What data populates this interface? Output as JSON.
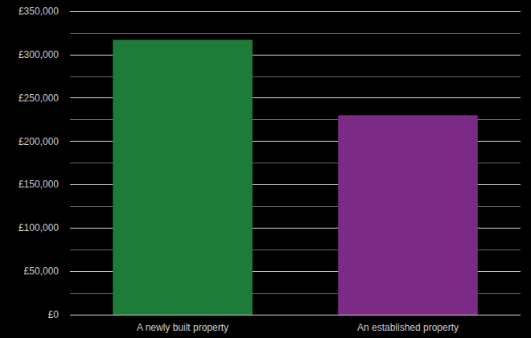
{
  "chart_data": {
    "type": "bar",
    "categories": [
      "A newly built property",
      "An established property"
    ],
    "values": [
      317000,
      230000
    ],
    "colors": [
      "#1e7b38",
      "#7b2a86"
    ],
    "ylim": [
      0,
      350000
    ],
    "yticks": [
      {
        "value": 0,
        "label": "£0"
      },
      {
        "value": 50000,
        "label": "£50,000"
      },
      {
        "value": 100000,
        "label": "£100,000"
      },
      {
        "value": 150000,
        "label": "£150,000"
      },
      {
        "value": 200000,
        "label": "£200,000"
      },
      {
        "value": 250000,
        "label": "£250,000"
      },
      {
        "value": 300000,
        "label": "£300,000"
      },
      {
        "value": 350000,
        "label": "£350,000"
      }
    ],
    "grid": true
  }
}
